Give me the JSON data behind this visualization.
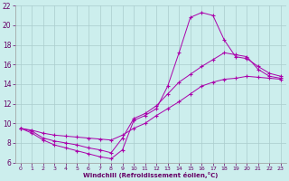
{
  "xlabel": "Windchill (Refroidissement éolien,°C)",
  "background_color": "#cceeed",
  "grid_color": "#aacccc",
  "line_color": "#aa00aa",
  "xlim": [
    -0.5,
    23.5
  ],
  "ylim": [
    6,
    22
  ],
  "xticks": [
    0,
    1,
    2,
    3,
    4,
    5,
    6,
    7,
    8,
    9,
    10,
    11,
    12,
    13,
    14,
    15,
    16,
    17,
    18,
    19,
    20,
    21,
    22,
    23
  ],
  "yticks": [
    6,
    8,
    10,
    12,
    14,
    16,
    18,
    20,
    22
  ],
  "curve1_x": [
    0,
    1,
    2,
    3,
    4,
    5,
    6,
    7,
    8,
    9,
    10,
    11,
    12,
    13,
    14,
    15,
    16,
    17,
    18,
    19,
    20,
    21,
    22,
    23
  ],
  "curve1_y": [
    9.5,
    9.0,
    8.3,
    7.8,
    7.5,
    7.2,
    6.9,
    6.6,
    6.4,
    7.3,
    10.3,
    10.8,
    11.5,
    13.8,
    17.2,
    20.8,
    21.3,
    21.0,
    18.5,
    16.8,
    16.6,
    15.8,
    15.1,
    14.8
  ],
  "curve2_x": [
    0,
    1,
    2,
    3,
    4,
    5,
    6,
    7,
    8,
    9,
    10,
    11,
    12,
    13,
    14,
    15,
    16,
    17,
    18,
    19,
    20,
    21,
    22,
    23
  ],
  "curve2_y": [
    9.5,
    9.2,
    8.5,
    8.2,
    8.0,
    7.8,
    7.5,
    7.3,
    7.0,
    8.5,
    10.5,
    11.0,
    11.8,
    13.0,
    14.2,
    15.0,
    15.8,
    16.5,
    17.2,
    17.0,
    16.8,
    15.5,
    14.8,
    14.6
  ],
  "curve3_x": [
    0,
    1,
    2,
    3,
    4,
    5,
    6,
    7,
    8,
    9,
    10,
    11,
    12,
    13,
    14,
    15,
    16,
    17,
    18,
    19,
    20,
    21,
    22,
    23
  ],
  "curve3_y": [
    9.5,
    9.3,
    9.0,
    8.8,
    8.7,
    8.6,
    8.5,
    8.4,
    8.3,
    8.8,
    9.5,
    10.0,
    10.8,
    11.5,
    12.2,
    13.0,
    13.8,
    14.2,
    14.5,
    14.6,
    14.8,
    14.7,
    14.6,
    14.5
  ]
}
